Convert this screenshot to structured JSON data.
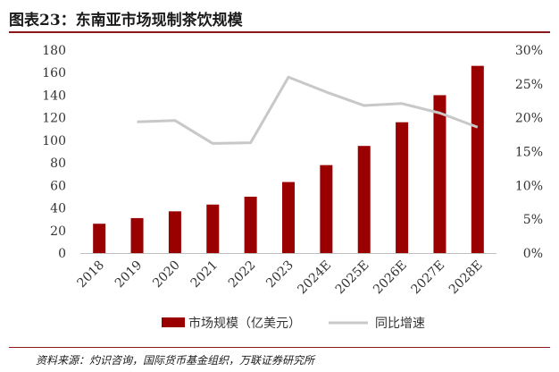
{
  "title": "图表23：东南亚市场现制茶饮规模",
  "source": "资料来源：灼识咨询，国际货币基金组织，万联证券研究所",
  "colors": {
    "bar": "#9b0000",
    "line": "#c8c8c8",
    "title_rule": "#8b1a1a"
  },
  "chart_data": {
    "type": "bar",
    "categories": [
      "2018",
      "2019",
      "2020",
      "2021",
      "2022",
      "2023",
      "2024E",
      "2025E",
      "2026E",
      "2027E",
      "2028E"
    ],
    "series": [
      {
        "name": "市场规模（亿美元）",
        "type": "bar",
        "axis": "left",
        "values": [
          26,
          31,
          37,
          43,
          50,
          63,
          78,
          95,
          116,
          140,
          166
        ]
      },
      {
        "name": "同比增速",
        "type": "line",
        "axis": "right",
        "values": [
          null,
          19.4,
          19.6,
          16.2,
          16.3,
          26.0,
          23.8,
          21.8,
          22.1,
          20.7,
          18.6
        ]
      }
    ],
    "y_left": {
      "lim": [
        0,
        180
      ],
      "ticks": [
        "0",
        "20",
        "40",
        "60",
        "80",
        "100",
        "120",
        "140",
        "160",
        "180"
      ]
    },
    "y_right": {
      "lim": [
        0,
        30
      ],
      "ticks": [
        "0%",
        "5%",
        "10%",
        "15%",
        "20%",
        "25%",
        "30%"
      ]
    },
    "legend_position": "bottom",
    "grid": false
  }
}
